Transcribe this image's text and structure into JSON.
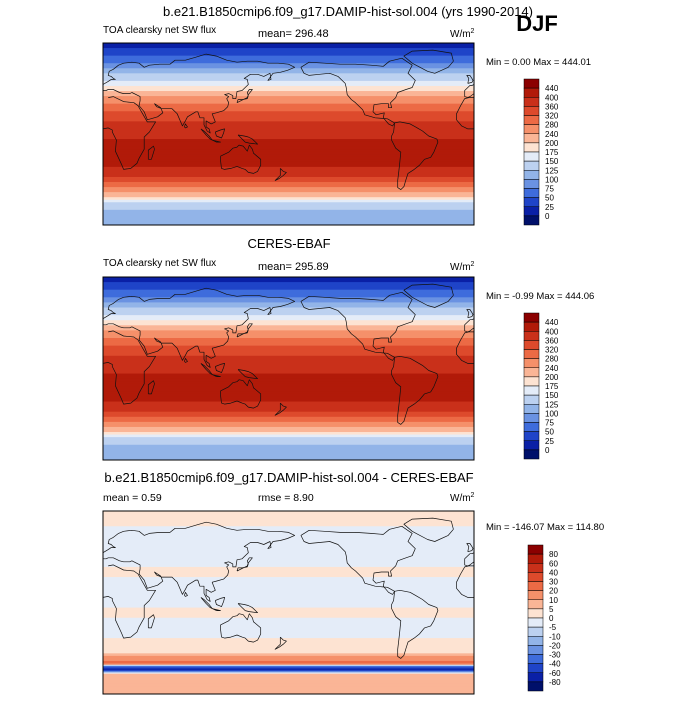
{
  "chart_data": [
    {
      "type": "heatmap",
      "title": "b.e21.B1850cmip6.f09_g17.DAMIP-hist-sol.004 (yrs 1990-2014)",
      "season": "DJF",
      "variable": "TOA clearsky net SW flux",
      "mean_text": "mean= 296.48",
      "units_base": "W/m",
      "units_exp": "2",
      "minmax_text": "Min =   0.00 Max = 444.01",
      "min": 0.0,
      "max": 444.01,
      "colorbar": {
        "labels": [
          "440",
          "400",
          "360",
          "320",
          "280",
          "240",
          "200",
          "175",
          "150",
          "125",
          "100",
          "75",
          "50",
          "25",
          "0"
        ],
        "colors": [
          "#8b0000",
          "#b11a09",
          "#c9301a",
          "#dd4a2c",
          "#ec6a45",
          "#f5906a",
          "#fab596",
          "#fde3d2",
          "#e4ecf8",
          "#bcd1f0",
          "#92b4e8",
          "#6a92e2",
          "#3e6cdc",
          "#1f44c8",
          "#0a20a6",
          "#00106a"
        ]
      },
      "lat_bands": [
        {
          "lat": 90,
          "v": 15
        },
        {
          "lat": 80,
          "v": 40
        },
        {
          "lat": 70,
          "v": 70
        },
        {
          "lat": 60,
          "v": 120
        },
        {
          "lat": 50,
          "v": 165
        },
        {
          "lat": 40,
          "v": 220
        },
        {
          "lat": 30,
          "v": 275
        },
        {
          "lat": 20,
          "v": 330
        },
        {
          "lat": 10,
          "v": 370
        },
        {
          "lat": 0,
          "v": 390
        },
        {
          "lat": -10,
          "v": 410
        },
        {
          "lat": -20,
          "v": 420
        },
        {
          "lat": -30,
          "v": 405
        },
        {
          "lat": -40,
          "v": 370
        },
        {
          "lat": -50,
          "v": 300
        },
        {
          "lat": -60,
          "v": 230
        },
        {
          "lat": -70,
          "v": 130
        },
        {
          "lat": -80,
          "v": 120
        },
        {
          "lat": -90,
          "v": 110
        }
      ]
    },
    {
      "type": "heatmap",
      "title": "CERES-EBAF",
      "variable": "TOA clearsky net SW flux",
      "mean_text": "mean= 295.89",
      "units_base": "W/m",
      "units_exp": "2",
      "minmax_text": "Min =  -0.99 Max = 444.06",
      "min": -0.99,
      "max": 444.06,
      "colorbar": {
        "labels": [
          "440",
          "400",
          "360",
          "320",
          "280",
          "240",
          "200",
          "175",
          "150",
          "125",
          "100",
          "75",
          "50",
          "25",
          "0"
        ],
        "colors": [
          "#8b0000",
          "#b11a09",
          "#c9301a",
          "#dd4a2c",
          "#ec6a45",
          "#f5906a",
          "#fab596",
          "#fde3d2",
          "#e4ecf8",
          "#bcd1f0",
          "#92b4e8",
          "#6a92e2",
          "#3e6cdc",
          "#1f44c8",
          "#0a20a6",
          "#00106a"
        ]
      },
      "lat_bands": [
        {
          "lat": 90,
          "v": 15
        },
        {
          "lat": 80,
          "v": 40
        },
        {
          "lat": 70,
          "v": 70
        },
        {
          "lat": 60,
          "v": 120
        },
        {
          "lat": 50,
          "v": 165
        },
        {
          "lat": 40,
          "v": 220
        },
        {
          "lat": 30,
          "v": 275
        },
        {
          "lat": 20,
          "v": 330
        },
        {
          "lat": 10,
          "v": 370
        },
        {
          "lat": 0,
          "v": 390
        },
        {
          "lat": -10,
          "v": 410
        },
        {
          "lat": -20,
          "v": 420
        },
        {
          "lat": -30,
          "v": 405
        },
        {
          "lat": -40,
          "v": 370
        },
        {
          "lat": -50,
          "v": 300
        },
        {
          "lat": -60,
          "v": 230
        },
        {
          "lat": -70,
          "v": 130
        },
        {
          "lat": -80,
          "v": 120
        },
        {
          "lat": -90,
          "v": 110
        }
      ]
    },
    {
      "type": "heatmap",
      "title": "b.e21.B1850cmip6.f09_g17.DAMIP-hist-sol.004 - CERES-EBAF",
      "mean_text": "mean =   0.59",
      "rmse_text": "rmse =   8.90",
      "units_base": "W/m",
      "units_exp": "2",
      "minmax_text": "Min = -146.07 Max = 114.80",
      "min": -146.07,
      "max": 114.8,
      "colorbar": {
        "labels": [
          "80",
          "60",
          "40",
          "30",
          "20",
          "10",
          "5",
          "0",
          "-5",
          "-10",
          "-20",
          "-30",
          "-40",
          "-60",
          "-80"
        ],
        "colors": [
          "#8b0000",
          "#b11a09",
          "#c9301a",
          "#dd4a2c",
          "#ec6a45",
          "#f5906a",
          "#fab596",
          "#fde3d2",
          "#e4ecf8",
          "#bcd1f0",
          "#92b4e8",
          "#6a92e2",
          "#3e6cdc",
          "#1f44c8",
          "#0a20a6",
          "#00106a"
        ]
      },
      "lat_bands": [
        {
          "lat": 90,
          "v": 3
        },
        {
          "lat": 80,
          "v": 3
        },
        {
          "lat": 70,
          "v": -3
        },
        {
          "lat": 60,
          "v": -3
        },
        {
          "lat": 50,
          "v": -3
        },
        {
          "lat": 40,
          "v": -3
        },
        {
          "lat": 30,
          "v": 3
        },
        {
          "lat": 20,
          "v": -3
        },
        {
          "lat": 10,
          "v": -3
        },
        {
          "lat": 0,
          "v": -3
        },
        {
          "lat": -10,
          "v": 3
        },
        {
          "lat": -20,
          "v": -3
        },
        {
          "lat": -30,
          "v": -3
        },
        {
          "lat": -40,
          "v": 3
        },
        {
          "lat": -50,
          "v": 3
        },
        {
          "lat": -60,
          "v": 30
        },
        {
          "lat": -65,
          "v": -70
        },
        {
          "lat": -70,
          "v": 8
        },
        {
          "lat": -80,
          "v": 8
        },
        {
          "lat": -90,
          "v": 8
        }
      ]
    }
  ]
}
